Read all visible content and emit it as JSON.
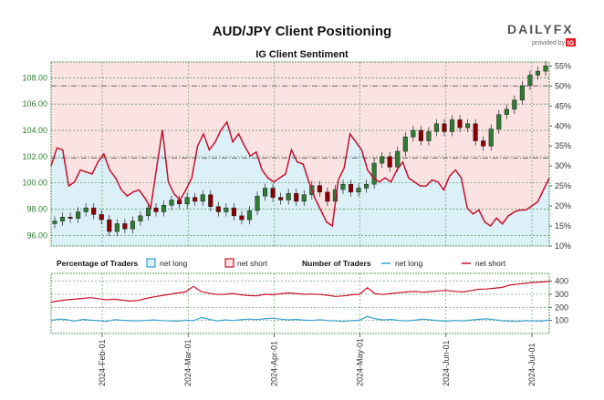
{
  "chart_data": {
    "type": "candlestick+line",
    "title": "AUD/JPY Client Positioning",
    "subtitle": "IG Client Sentiment",
    "brand": {
      "name": "DAILYFX",
      "tagline": "provided by",
      "partner": "IG",
      "accent": "#e31b23"
    },
    "price_axis": {
      "ticks": [
        "96.00",
        "98.00",
        "100.00",
        "102.00",
        "104.00",
        "106.00",
        "108.00"
      ],
      "ylim": [
        95.2,
        109.2
      ]
    },
    "percent_axis": {
      "ticks": [
        "10%",
        "15%",
        "20%",
        "25%",
        "30%",
        "35%",
        "40%",
        "45%",
        "50%",
        "55%"
      ],
      "ylim": [
        10,
        56
      ]
    },
    "count_axis": {
      "ticks": [
        "100",
        "200",
        "300",
        "400"
      ],
      "ylim": [
        0,
        460
      ]
    },
    "x_ticks": [
      "2024-Feb-01",
      "2024-Mar-01",
      "2024-Apr-01",
      "2024-May-01",
      "2024-Jun-01",
      "2024-Jul-01"
    ],
    "reference_lines": [
      {
        "percent": 50,
        "style": "dash-dot"
      },
      {
        "percent": 32,
        "style": "dash-dot"
      }
    ],
    "legend": {
      "percent_label": "Percentage of Traders",
      "count_label": "Number of Traders",
      "long_label": "net long",
      "short_label": "net short"
    },
    "colors": {
      "long": "#3aa0d5",
      "short": "#c8102e",
      "up": "#2e7d32",
      "down": "#8b0000",
      "grid": "#2e7d32",
      "frame": "#2e7d32"
    },
    "series": {
      "price": [
        97.1,
        97.4,
        97.3,
        97.8,
        98.1,
        97.6,
        97.2,
        96.3,
        96.9,
        96.5,
        97.1,
        97.5,
        98.1,
        97.8,
        98.3,
        98.7,
        98.4,
        98.9,
        98.6,
        99.1,
        98.2,
        97.8,
        98.1,
        97.5,
        97.2,
        97.9,
        99.0,
        99.6,
        98.9,
        98.7,
        99.2,
        98.6,
        99.1,
        99.8,
        99.3,
        98.6,
        99.5,
        99.9,
        99.3,
        99.6,
        99.9,
        101.5,
        102.0,
        101.2,
        102.4,
        103.5,
        104.0,
        103.2,
        103.9,
        104.5,
        103.9,
        104.8,
        104.2,
        104.5,
        103.2,
        102.8,
        104.1,
        105.2,
        105.6,
        106.3,
        107.4,
        108.2,
        108.5,
        108.9
      ],
      "net_long_pct": [
        30,
        34.5,
        34,
        25,
        26,
        29,
        28.5,
        28,
        31,
        33,
        29,
        27,
        24,
        22.5,
        23.5,
        24,
        22,
        19.5,
        29.5,
        39,
        26,
        23,
        21.5,
        24,
        27,
        35,
        38,
        34,
        36,
        39,
        41,
        36,
        38,
        35,
        32.5,
        33.5,
        29,
        27,
        26,
        27,
        28,
        34,
        31,
        30.5,
        26,
        22,
        19,
        16,
        15,
        26.5,
        29.5,
        38,
        36,
        34,
        29,
        27,
        26,
        27,
        26,
        29,
        31,
        27,
        26,
        25,
        25,
        26.5,
        26,
        24,
        27.5,
        29,
        27,
        19.5,
        18,
        19,
        16,
        15,
        17,
        15.5,
        17.5,
        18.5,
        19,
        19,
        20,
        21,
        24,
        27
      ],
      "net_long_pct_note": "plotted inverted: net short share line",
      "long_count": [
        100,
        110,
        105,
        95,
        108,
        102,
        98,
        92,
        106,
        101,
        98,
        96,
        100,
        104,
        99,
        96,
        94,
        102,
        98,
        122,
        108,
        96,
        104,
        99,
        105,
        110,
        106,
        112,
        118,
        110,
        104,
        108,
        102,
        100,
        106,
        98,
        96,
        92,
        98,
        102,
        130,
        112,
        104,
        108,
        100,
        96,
        102,
        110,
        104,
        98,
        94,
        100,
        96,
        102,
        108,
        112,
        106,
        98,
        94,
        92,
        98,
        96,
        94,
        104
      ],
      "short_count": [
        240,
        250,
        258,
        262,
        268,
        274,
        266,
        258,
        262,
        255,
        248,
        252,
        268,
        280,
        290,
        300,
        310,
        318,
        360,
        320,
        308,
        298,
        300,
        306,
        296,
        290,
        288,
        300,
        296,
        304,
        310,
        306,
        300,
        302,
        298,
        292,
        284,
        288,
        296,
        300,
        350,
        304,
        298,
        306,
        312,
        318,
        322,
        316,
        320,
        326,
        330,
        322,
        318,
        326,
        338,
        340,
        346,
        352,
        370,
        378,
        384,
        390,
        394,
        398
      ]
    }
  }
}
